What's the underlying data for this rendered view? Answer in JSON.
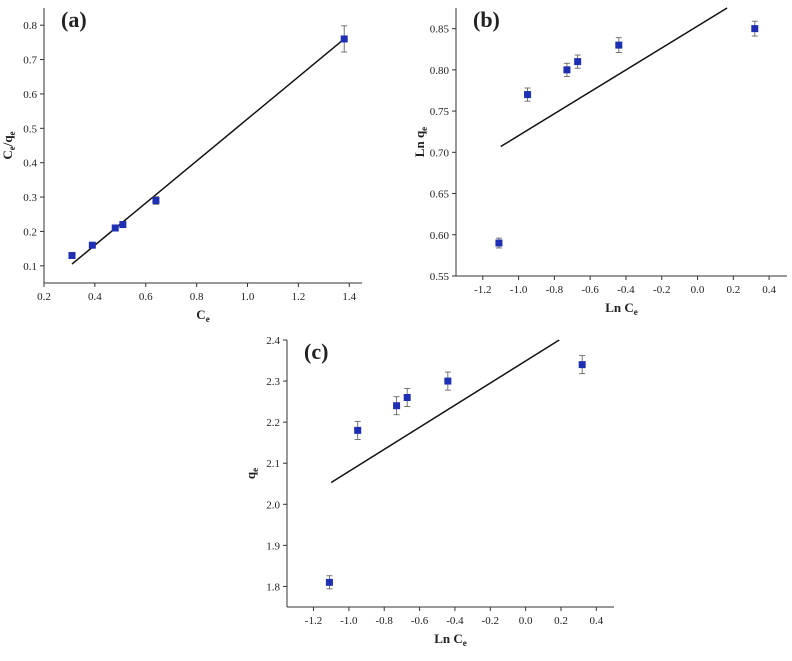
{
  "chart_data": [
    {
      "type": "scatter",
      "panel_label": "(a)",
      "xlabel": "C",
      "xlabel_sub": "e",
      "ylabel": "C",
      "ylabel_sub": "e",
      "ylabel_suffix": "/q",
      "ylabel_suffix_sub": "e",
      "xlim": [
        0.2,
        1.45
      ],
      "ylim": [
        0.05,
        0.85
      ],
      "xticks": [
        "0.2",
        "0.4",
        "0.6",
        "0.8",
        "1.0",
        "1.2",
        "1.4"
      ],
      "yticks": [
        "0.1",
        "0.2",
        "0.3",
        "0.4",
        "0.5",
        "0.6",
        "0.7",
        "0.8"
      ],
      "points": [
        {
          "x": 0.31,
          "y": 0.13,
          "err": 0.004
        },
        {
          "x": 0.39,
          "y": 0.16,
          "err": 0.005
        },
        {
          "x": 0.48,
          "y": 0.21,
          "err": 0.006
        },
        {
          "x": 0.51,
          "y": 0.22,
          "err": 0.007
        },
        {
          "x": 0.64,
          "y": 0.29,
          "err": 0.011
        },
        {
          "x": 1.38,
          "y": 0.76,
          "err": 0.038
        }
      ],
      "fit_line": {
        "x": [
          0.31,
          1.38
        ],
        "y": [
          0.105,
          0.76
        ]
      },
      "color": "#1f2fb3"
    },
    {
      "type": "scatter",
      "panel_label": "(b)",
      "xlabel": "Ln C",
      "xlabel_sub": "e",
      "ylabel": "Ln q",
      "ylabel_sub": "e",
      "ylabel_suffix": "",
      "ylabel_suffix_sub": "",
      "xlim": [
        -1.35,
        0.5
      ],
      "ylim": [
        0.55,
        0.875
      ],
      "xticks": [
        "-1.2",
        "-1.0",
        "-0.8",
        "-0.6",
        "-0.4",
        "-0.2",
        "0.0",
        "0.2",
        "0.4"
      ],
      "yticks": [
        "0.55",
        "0.60",
        "0.65",
        "0.70",
        "0.75",
        "0.80",
        "0.85"
      ],
      "points": [
        {
          "x": -1.11,
          "y": 0.59,
          "err": 0.006
        },
        {
          "x": -0.95,
          "y": 0.77,
          "err": 0.008
        },
        {
          "x": -0.73,
          "y": 0.8,
          "err": 0.008
        },
        {
          "x": -0.67,
          "y": 0.81,
          "err": 0.008
        },
        {
          "x": -0.44,
          "y": 0.83,
          "err": 0.009
        },
        {
          "x": 0.32,
          "y": 0.85,
          "err": 0.009
        }
      ],
      "fit_line": {
        "x": [
          -1.1,
          0.165
        ],
        "y": [
          0.707,
          0.875
        ]
      },
      "color": "#1f2fb3"
    },
    {
      "type": "scatter",
      "panel_label": "(c)",
      "xlabel": "Ln C",
      "xlabel_sub": "e",
      "ylabel": "q",
      "ylabel_sub": "e",
      "ylabel_suffix": "",
      "ylabel_suffix_sub": "",
      "xlim": [
        -1.35,
        0.5
      ],
      "ylim": [
        1.75,
        2.4
      ],
      "xticks": [
        "-1.2",
        "-1.0",
        "-0.8",
        "-0.6",
        "-0.4",
        "-0.2",
        "0.0",
        "0.2",
        "0.4"
      ],
      "yticks": [
        "1.8",
        "1.9",
        "2.0",
        "2.1",
        "2.2",
        "2.3",
        "2.4"
      ],
      "points": [
        {
          "x": -1.11,
          "y": 1.81,
          "err": 0.016
        },
        {
          "x": -0.95,
          "y": 2.18,
          "err": 0.022
        },
        {
          "x": -0.73,
          "y": 2.24,
          "err": 0.022
        },
        {
          "x": -0.67,
          "y": 2.26,
          "err": 0.022
        },
        {
          "x": -0.44,
          "y": 2.3,
          "err": 0.022
        },
        {
          "x": 0.32,
          "y": 2.34,
          "err": 0.022
        }
      ],
      "fit_line": {
        "x": [
          -1.1,
          0.19
        ],
        "y": [
          2.053,
          2.4
        ]
      },
      "color": "#1f2fb3"
    }
  ]
}
